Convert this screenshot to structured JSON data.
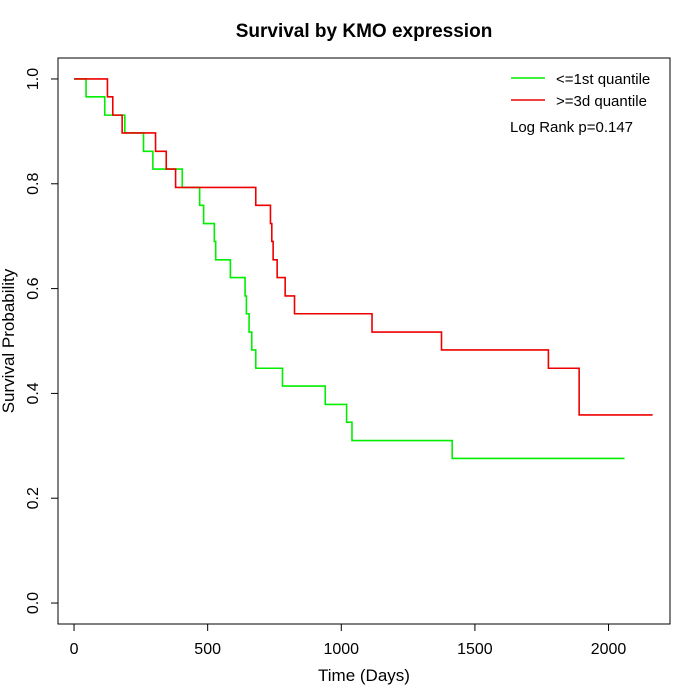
{
  "chart_data": {
    "type": "line",
    "subtype": "kaplan-meier step",
    "title": "Survival by KMO expression",
    "xlabel": "Time (Days)",
    "ylabel": "Survival Probability",
    "xlim": [
      -60,
      2230
    ],
    "ylim": [
      -0.04,
      1.04
    ],
    "xticks": [
      0,
      500,
      1000,
      1500,
      2000
    ],
    "yticks": [
      0.0,
      0.2,
      0.4,
      0.6,
      0.8,
      1.0
    ],
    "xtick_labels": [
      "0",
      "500",
      "1000",
      "1500",
      "2000"
    ],
    "ytick_labels": [
      "0.0",
      "0.2",
      "0.4",
      "0.6",
      "0.8",
      "1.0"
    ],
    "grid": false,
    "legend_position": "top-right",
    "annotation": "Log Rank p=0.147",
    "series": [
      {
        "name": "<=1st quantile",
        "color": "#00ee00",
        "x": [
          0,
          45,
          115,
          190,
          260,
          295,
          375,
          405,
          470,
          475,
          485,
          525,
          530,
          585,
          640,
          645,
          655,
          665,
          680,
          780,
          940,
          1020,
          1030,
          1040,
          1415,
          2060
        ],
        "y": [
          1.0,
          0.966,
          0.931,
          0.897,
          0.862,
          0.828,
          0.828,
          0.793,
          0.759,
          0.759,
          0.724,
          0.69,
          0.655,
          0.621,
          0.586,
          0.552,
          0.517,
          0.483,
          0.448,
          0.414,
          0.379,
          0.345,
          0.345,
          0.31,
          0.276,
          0.276
        ]
      },
      {
        "name": ">=3d quantile",
        "color": "#ee0000",
        "x": [
          0,
          125,
          145,
          180,
          305,
          345,
          380,
          680,
          735,
          740,
          745,
          760,
          790,
          825,
          1115,
          1375,
          1775,
          1890,
          2165
        ],
        "y": [
          1.0,
          0.966,
          0.931,
          0.897,
          0.862,
          0.828,
          0.793,
          0.759,
          0.724,
          0.69,
          0.655,
          0.621,
          0.586,
          0.552,
          0.517,
          0.483,
          0.448,
          0.359,
          0.359
        ]
      }
    ]
  }
}
